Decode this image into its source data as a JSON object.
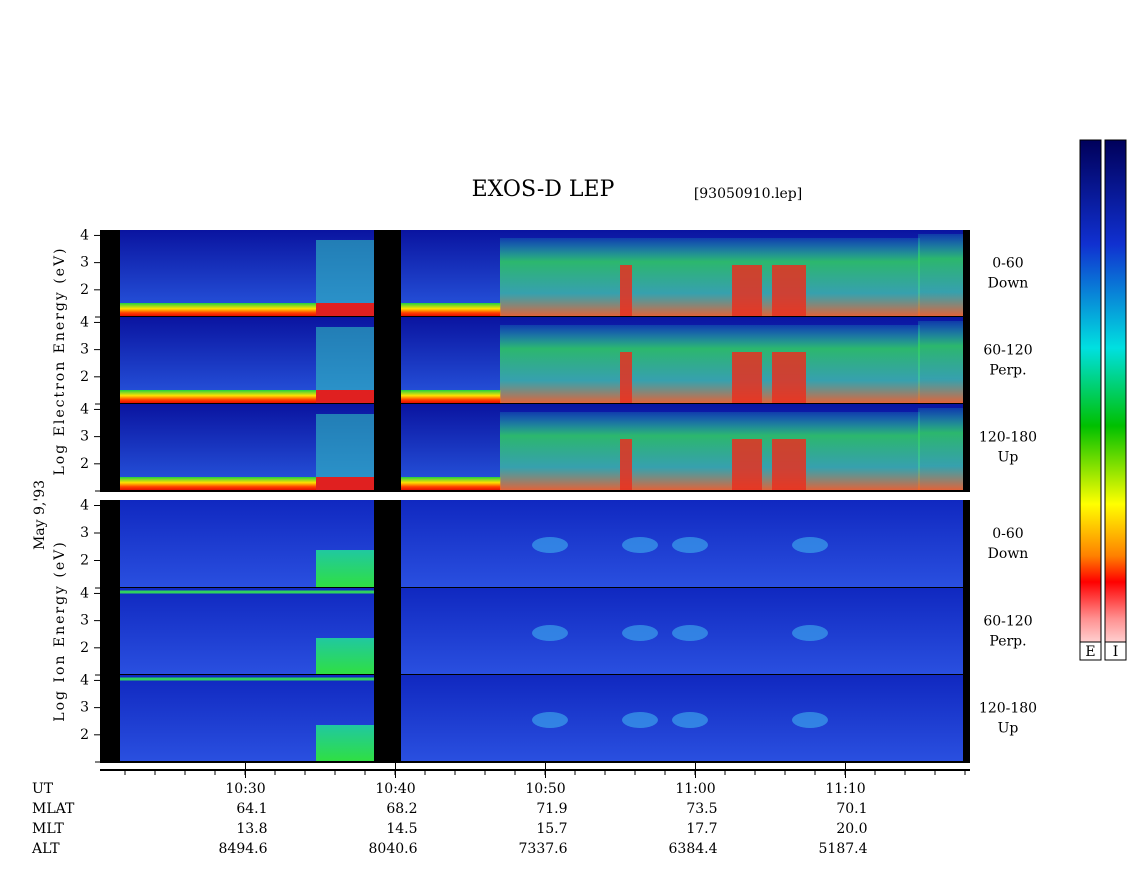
{
  "title": "EXOS-D LEP",
  "file": "[93050910.lep]",
  "date": "May 9,'93",
  "groups": [
    {
      "label": "Log Electron Energy (eV)"
    },
    {
      "label": "Log Ion Energy (eV)"
    }
  ],
  "panels": [
    {
      "angle": "0-60",
      "direction": "Down"
    },
    {
      "angle": "60-120",
      "direction": "Perp."
    },
    {
      "angle": "120-180",
      "direction": "Up"
    },
    {
      "angle": "0-60",
      "direction": "Down"
    },
    {
      "angle": "60-120",
      "direction": "Perp."
    },
    {
      "angle": "120-180",
      "direction": "Up"
    }
  ],
  "ylim": [
    1,
    4.2
  ],
  "yticks": [
    2,
    3,
    4
  ],
  "xlim": [
    20.3,
    78.3
  ],
  "xticks": [
    {
      "value": 30,
      "label": "10:30"
    },
    {
      "value": 40,
      "label": "10:40"
    },
    {
      "value": 50,
      "label": "10:50"
    },
    {
      "value": 60,
      "label": "11:00"
    },
    {
      "value": 70,
      "label": "11:10"
    }
  ],
  "ephemeris": {
    "labels": [
      "UT",
      "MLAT",
      "MLT",
      "ALT"
    ],
    "rows": [
      [
        "64.1",
        "68.2",
        "71.9",
        "73.5",
        "70.1"
      ],
      [
        "13.8",
        "14.5",
        "15.7",
        "17.7",
        "20.0"
      ],
      [
        "8494.6",
        "8040.6",
        "7337.6",
        "6384.4",
        "5187.4"
      ]
    ]
  },
  "colorbar": {
    "labels": [
      "E",
      "I"
    ]
  }
}
